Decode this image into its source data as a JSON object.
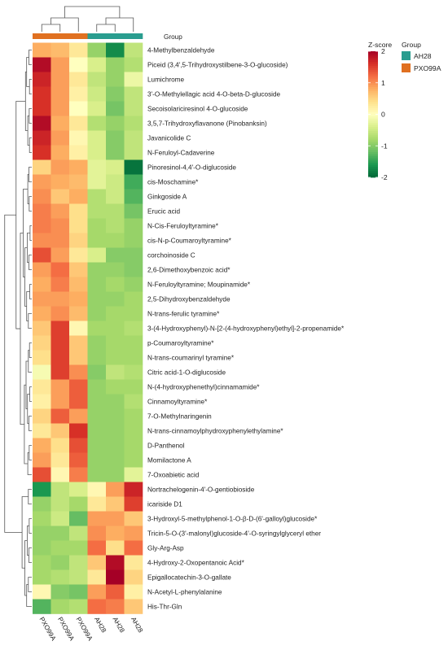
{
  "chart_data": {
    "type": "heatmap",
    "group_bar_label": "Group",
    "columns": [
      "PXO99A",
      "PXO99A",
      "PXO99A",
      "AH28",
      "AH28",
      "AH28"
    ],
    "column_groups": [
      "PXO99A",
      "PXO99A",
      "PXO99A",
      "AH28",
      "AH28",
      "AH28"
    ],
    "rows": [
      "4-Methylbenzaldehyde",
      "Piceid (3,4',5-Trihydroxystilbene-3-O-glucoside)",
      "Lumichrome",
      "3'-O-Methylellagic acid 4-O-beta-D-glucoside",
      "Secoisolariciresinol 4-O-glucoside",
      "3,5,7-Trihydroxyflavanone (Pinobanksin)",
      "Javanicolide C",
      "N-Feruloyl-Cadaverine",
      "Pinoresinol-4,4'-O-diglucoside",
      "cis-Moschamine*",
      "Ginkgoside A",
      "Erucic acid",
      "N-Cis-Feruloyltyramine*",
      "cis-N-p-Coumaroyltyramine*",
      "corchoinoside C",
      "2,6-Dimethoxybenzoic acid*",
      "N-Feruloyltyramine; Moupinamide*",
      "2,5-Dihydroxybenzaldehyde",
      "N-trans-ferulic tyramine*",
      "3-(4-Hydroxyphenyl)-N-[2-(4-hydroxyphenyl)ethyl]-2-propenamide*",
      "p-Coumaroyltyramine*",
      "N-trans-coumarinyl tyramine*",
      "Citric acid-1-O-diglucoside",
      "N-(4-hydroxyphenethyl)cinnamamide*",
      "Cinnamoyltyramine*",
      "7-O-Methylnaringenin",
      "N-trans-cinnamoylphydroxyphenylethylamine*",
      "D-Panthenol",
      "Momilactone A",
      "7-Oxoabietic acid",
      "Nortrachelogenin-4'-O-gentiobioside",
      "icariside D1",
      "3-Hydroxyl-5-methylphenol-1-O-β-D-(6'-galloyl)glucoside*",
      "Tricin-5-O-(3'-malonyl)glucoside-4'-O-syringylglyceryl ether",
      "Gly-Arg-Asp",
      "4-Hydroxy-2-Oxopentanoic Acid*",
      "Epigallocatechin-3-O-gallate",
      "N-Acetyl-L-phenylalanine",
      "His-Thr-Gln"
    ],
    "values": [
      [
        0.8,
        0.7,
        0.3,
        -0.9,
        -1.7,
        -0.6
      ],
      [
        1.9,
        0.9,
        0.0,
        -0.4,
        -0.9,
        -0.7
      ],
      [
        1.7,
        0.9,
        0.3,
        -0.6,
        -0.9,
        -0.2
      ],
      [
        1.6,
        0.9,
        0.2,
        -0.5,
        -1.0,
        -0.6
      ],
      [
        1.6,
        0.9,
        0.0,
        -0.4,
        -1.1,
        -0.6
      ],
      [
        1.9,
        0.8,
        0.3,
        -0.7,
        -0.9,
        -0.7
      ],
      [
        1.7,
        0.9,
        0.1,
        -0.4,
        -1.0,
        -0.6
      ],
      [
        1.6,
        0.8,
        0.2,
        -0.4,
        -1.0,
        -0.6
      ],
      [
        0.5,
        0.9,
        0.8,
        -0.3,
        -0.4,
        -1.9
      ],
      [
        0.9,
        0.8,
        0.7,
        -0.3,
        -0.5,
        -1.4
      ],
      [
        1.0,
        0.6,
        0.8,
        -0.7,
        -0.5,
        -1.3
      ],
      [
        1.1,
        0.9,
        0.4,
        -0.7,
        -0.7,
        -1.1
      ],
      [
        1.1,
        1.0,
        0.4,
        -0.8,
        -0.7,
        -0.9
      ],
      [
        1.0,
        1.0,
        0.5,
        -0.8,
        -0.8,
        -0.9
      ],
      [
        1.4,
        0.9,
        0.3,
        -0.4,
        -1.0,
        -1.0
      ],
      [
        0.9,
        1.2,
        0.6,
        -0.9,
        -0.9,
        -1.0
      ],
      [
        0.8,
        1.1,
        0.7,
        -0.9,
        -0.8,
        -0.9
      ],
      [
        0.9,
        0.9,
        0.8,
        -0.9,
        -0.9,
        -0.8
      ],
      [
        0.8,
        1.0,
        0.7,
        -0.9,
        -0.8,
        -0.8
      ],
      [
        0.6,
        1.5,
        0.1,
        -0.8,
        -0.8,
        -0.7
      ],
      [
        0.5,
        1.5,
        0.6,
        -0.9,
        -0.8,
        -0.8
      ],
      [
        0.4,
        1.5,
        0.6,
        -0.9,
        -0.8,
        -0.8
      ],
      [
        -0.1,
        1.5,
        1.0,
        -1.0,
        -0.6,
        -0.7
      ],
      [
        0.3,
        0.9,
        1.3,
        -0.9,
        -0.8,
        -0.8
      ],
      [
        0.2,
        0.9,
        1.3,
        -0.9,
        -0.9,
        -0.7
      ],
      [
        0.5,
        1.3,
        0.9,
        -0.9,
        -0.9,
        -0.8
      ],
      [
        0.3,
        0.6,
        1.6,
        -0.9,
        -0.9,
        -0.8
      ],
      [
        0.8,
        0.4,
        1.4,
        -0.9,
        -0.9,
        -0.8
      ],
      [
        0.9,
        0.3,
        1.3,
        -0.9,
        -0.9,
        -0.8
      ],
      [
        1.4,
        0.1,
        1.1,
        -0.9,
        -0.9,
        -0.3
      ],
      [
        -1.6,
        -0.6,
        -0.4,
        0.1,
        0.9,
        1.7
      ],
      [
        -0.9,
        -0.6,
        -0.8,
        0.3,
        0.6,
        1.5
      ],
      [
        -0.8,
        -0.5,
        -1.2,
        0.9,
        0.9,
        0.6
      ],
      [
        -0.9,
        -0.9,
        -0.6,
        1.0,
        0.8,
        0.9
      ],
      [
        -0.9,
        -0.8,
        -0.8,
        1.2,
        0.4,
        1.2
      ],
      [
        -0.8,
        -0.9,
        -0.6,
        0.6,
        1.9,
        0.3
      ],
      [
        -0.8,
        -0.7,
        -0.6,
        0.3,
        2.0,
        0.5
      ],
      [
        0.1,
        -1.0,
        -1.1,
        0.9,
        1.3,
        0.2
      ],
      [
        -1.3,
        -0.8,
        -0.7,
        1.2,
        1.1,
        0.6
      ]
    ],
    "scale": {
      "title": "Z-score",
      "min": -2,
      "max": 2,
      "ticks": [
        "2",
        "1",
        "0",
        "-1",
        "-2"
      ],
      "colors": [
        "#006837",
        "#1a9850",
        "#66bd63",
        "#a6d96a",
        "#d9ef8b",
        "#ffffbf",
        "#fee08b",
        "#fdae61",
        "#f46d43",
        "#d73027",
        "#a50026"
      ]
    },
    "legend": {
      "title": "Group",
      "position": "top-right",
      "entries": [
        {
          "name": "AH28",
          "color": "#2a9d8f"
        },
        {
          "name": "PXO99A",
          "color": "#e07020"
        }
      ]
    },
    "row_clusters": 2,
    "col_clusters": 2
  }
}
